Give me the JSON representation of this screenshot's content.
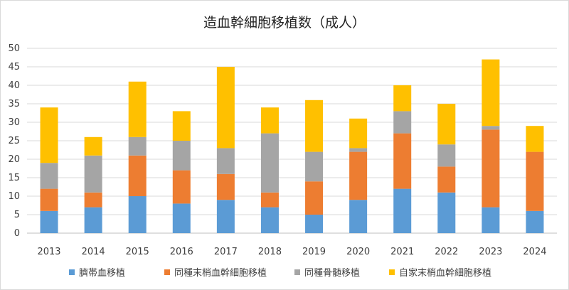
{
  "chart_data": {
    "type": "bar",
    "stacked": true,
    "title": "造血幹細胞移植数（成人）",
    "categories": [
      "2013",
      "2014",
      "2015",
      "2016",
      "2017",
      "2018",
      "2019",
      "2020",
      "2021",
      "2022",
      "2023",
      "2024"
    ],
    "series": [
      {
        "name": "臍帯血移植",
        "color": "#5b9bd5",
        "values": [
          6,
          7,
          10,
          8,
          9,
          7,
          5,
          9,
          12,
          11,
          7,
          6
        ]
      },
      {
        "name": "同種末梢血幹細胞移植",
        "color": "#ed7d31",
        "values": [
          6,
          4,
          11,
          9,
          7,
          4,
          9,
          13,
          15,
          7,
          21,
          16
        ]
      },
      {
        "name": "同種骨髄移植",
        "color": "#a5a5a5",
        "values": [
          7,
          10,
          5,
          8,
          7,
          16,
          8,
          1,
          6,
          6,
          1,
          0
        ]
      },
      {
        "name": "自家末梢血幹細胞移植",
        "color": "#ffc000",
        "values": [
          15,
          5,
          15,
          8,
          22,
          7,
          14,
          8,
          7,
          11,
          18,
          7
        ]
      }
    ],
    "ylim": [
      0,
      50
    ],
    "yticks": [
      0,
      5,
      10,
      15,
      20,
      25,
      30,
      35,
      40,
      45,
      50
    ],
    "grid": true,
    "legend_position": "bottom"
  }
}
